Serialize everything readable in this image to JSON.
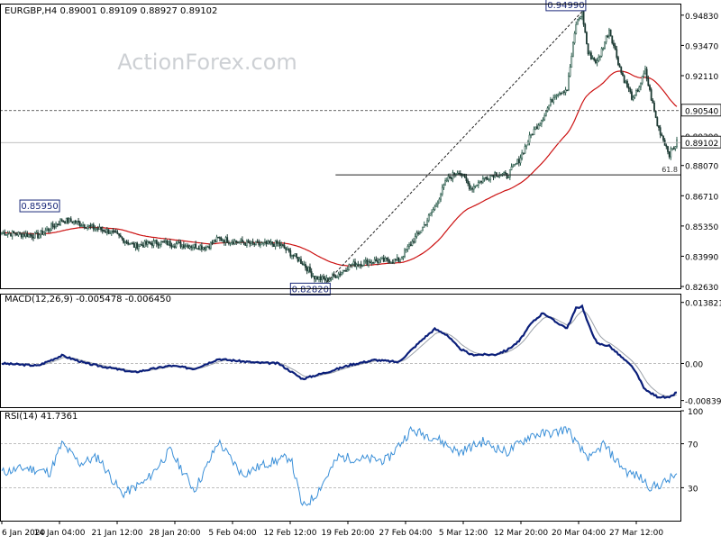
{
  "header": {
    "title": "EURGBP,H4  0.89001 0.89109 0.88927 0.89102",
    "watermark": "ActionForex.com"
  },
  "colors": {
    "bull": "#2f5f4f",
    "bear": "#1d3a33",
    "ma": "#cc1111",
    "macd": "#0b1f7a",
    "macd_signal": "#9aa0a8",
    "rsi": "#3a8fd8",
    "grid": "#a8a8a8",
    "label_border": "#1b2a7a"
  },
  "chart_data": [
    {
      "type": "candlestick",
      "title": "EURGBP,H4  0.89001 0.89109 0.88927 0.89102",
      "ylim": [
        0.8255,
        0.9535
      ],
      "x_start": 0,
      "x_end": 449,
      "y_ticks": [
        "0.94830",
        "0.93470",
        "0.92110",
        "0.90540",
        "0.89390",
        "0.89102",
        "0.88070",
        "0.86710",
        "0.85350",
        "0.83990",
        "0.82630"
      ],
      "y_tick_values": [
        0.9483,
        0.9347,
        0.9211,
        0.9054,
        0.8939,
        0.89102,
        0.8807,
        0.8671,
        0.8535,
        0.8399,
        0.8263
      ],
      "boxed_ticks": [
        "0.90540",
        "0.89102"
      ],
      "price_keypoints": [
        [
          0,
          0.8505
        ],
        [
          24,
          0.8492
        ],
        [
          40,
          0.856
        ],
        [
          48,
          0.8555
        ],
        [
          60,
          0.8528
        ],
        [
          72,
          0.851
        ],
        [
          88,
          0.8445
        ],
        [
          104,
          0.8462
        ],
        [
          128,
          0.8445
        ],
        [
          136,
          0.844
        ],
        [
          144,
          0.8478
        ],
        [
          168,
          0.8452
        ],
        [
          184,
          0.8455
        ],
        [
          200,
          0.837
        ],
        [
          208,
          0.8305
        ],
        [
          216,
          0.8292
        ],
        [
          224,
          0.832
        ],
        [
          232,
          0.836
        ],
        [
          248,
          0.8378
        ],
        [
          264,
          0.838
        ],
        [
          280,
          0.8528
        ],
        [
          288,
          0.862
        ],
        [
          296,
          0.8742
        ],
        [
          304,
          0.8785
        ],
        [
          312,
          0.8705
        ],
        [
          320,
          0.8745
        ],
        [
          328,
          0.8772
        ],
        [
          336,
          0.876
        ],
        [
          344,
          0.8832
        ],
        [
          352,
          0.8945
        ],
        [
          360,
          0.9025
        ],
        [
          368,
          0.913
        ],
        [
          376,
          0.9152
        ],
        [
          382,
          0.9445
        ],
        [
          386,
          0.9495
        ],
        [
          390,
          0.931
        ],
        [
          396,
          0.927
        ],
        [
          404,
          0.942
        ],
        [
          412,
          0.9225
        ],
        [
          420,
          0.91
        ],
        [
          428,
          0.923
        ],
        [
          436,
          0.899
        ],
        [
          444,
          0.886
        ],
        [
          449,
          0.891
        ]
      ],
      "ma_period": 55,
      "annotations": [
        {
          "text": "0.94990",
          "type": "high",
          "value": 0.9499
        },
        {
          "text": "0.85950",
          "type": "high",
          "value": 0.8595
        },
        {
          "text": "0.82820",
          "type": "low",
          "value": 0.8282
        }
      ],
      "fib_label": "61.8",
      "fib_level": 0.8765,
      "level_lines": [
        0.9054,
        0.89102
      ],
      "x_ticks": [
        "6 Jan 2020",
        "14 Jan 04:00",
        "21 Jan 12:00",
        "28 Jan 20:00",
        "5 Feb 04:00",
        "12 Feb 12:00",
        "19 Feb 20:00",
        "27 Feb 04:00",
        "5 Mar 12:00",
        "12 Mar 20:00",
        "20 Mar 04:00",
        "27 Mar 12:00"
      ]
    },
    {
      "type": "line",
      "title": "MACD(12,26,9) -0.005478 -0.006450",
      "ylim": [
        -0.0099,
        0.0158
      ],
      "y_ticks": [
        "0.013821",
        "0.00",
        "-0.008397"
      ],
      "y_tick_values": [
        0.013821,
        0.0,
        -0.008397
      ],
      "macd_keypoints": [
        [
          0,
          0.0
        ],
        [
          24,
          -0.0005
        ],
        [
          40,
          0.0018
        ],
        [
          56,
          0.0
        ],
        [
          72,
          -0.001
        ],
        [
          88,
          -0.002
        ],
        [
          112,
          -0.0005
        ],
        [
          128,
          -0.0012
        ],
        [
          144,
          0.001
        ],
        [
          168,
          0.0002
        ],
        [
          184,
          0.0
        ],
        [
          200,
          -0.0035
        ],
        [
          216,
          -0.002
        ],
        [
          232,
          -0.0003
        ],
        [
          248,
          0.0008
        ],
        [
          264,
          0.0003
        ],
        [
          280,
          0.0055
        ],
        [
          288,
          0.0078
        ],
        [
          296,
          0.0065
        ],
        [
          304,
          0.0035
        ],
        [
          312,
          0.002
        ],
        [
          320,
          0.002
        ],
        [
          328,
          0.002
        ],
        [
          336,
          0.003
        ],
        [
          344,
          0.005
        ],
        [
          352,
          0.009
        ],
        [
          360,
          0.0115
        ],
        [
          368,
          0.0095
        ],
        [
          376,
          0.008
        ],
        [
          382,
          0.0125
        ],
        [
          386,
          0.013
        ],
        [
          390,
          0.009
        ],
        [
          396,
          0.0045
        ],
        [
          404,
          0.004
        ],
        [
          412,
          0.0015
        ],
        [
          420,
          -0.001
        ],
        [
          428,
          -0.006
        ],
        [
          436,
          -0.0075
        ],
        [
          444,
          -0.0078
        ],
        [
          449,
          -0.0065
        ]
      ]
    },
    {
      "type": "line",
      "title": "RSI(14) 41.7361",
      "ylim": [
        0,
        100
      ],
      "y_ticks": [
        "100",
        "70",
        "30"
      ],
      "y_tick_values": [
        100,
        70,
        30
      ],
      "dashed_levels": [
        70,
        30
      ],
      "rsi_keypoints": [
        [
          0,
          44
        ],
        [
          16,
          48
        ],
        [
          32,
          44
        ],
        [
          40,
          70
        ],
        [
          52,
          52
        ],
        [
          64,
          58
        ],
        [
          80,
          24
        ],
        [
          96,
          36
        ],
        [
          112,
          64
        ],
        [
          128,
          28
        ],
        [
          136,
          48
        ],
        [
          144,
          72
        ],
        [
          160,
          42
        ],
        [
          176,
          52
        ],
        [
          192,
          58
        ],
        [
          200,
          12
        ],
        [
          208,
          22
        ],
        [
          224,
          58
        ],
        [
          240,
          56
        ],
        [
          256,
          55
        ],
        [
          272,
          82
        ],
        [
          288,
          76
        ],
        [
          304,
          62
        ],
        [
          320,
          72
        ],
        [
          336,
          62
        ],
        [
          352,
          78
        ],
        [
          368,
          80
        ],
        [
          376,
          84
        ],
        [
          384,
          66
        ],
        [
          392,
          56
        ],
        [
          400,
          70
        ],
        [
          408,
          56
        ],
        [
          416,
          44
        ],
        [
          424,
          40
        ],
        [
          432,
          30
        ],
        [
          440,
          34
        ],
        [
          449,
          42
        ]
      ]
    }
  ]
}
